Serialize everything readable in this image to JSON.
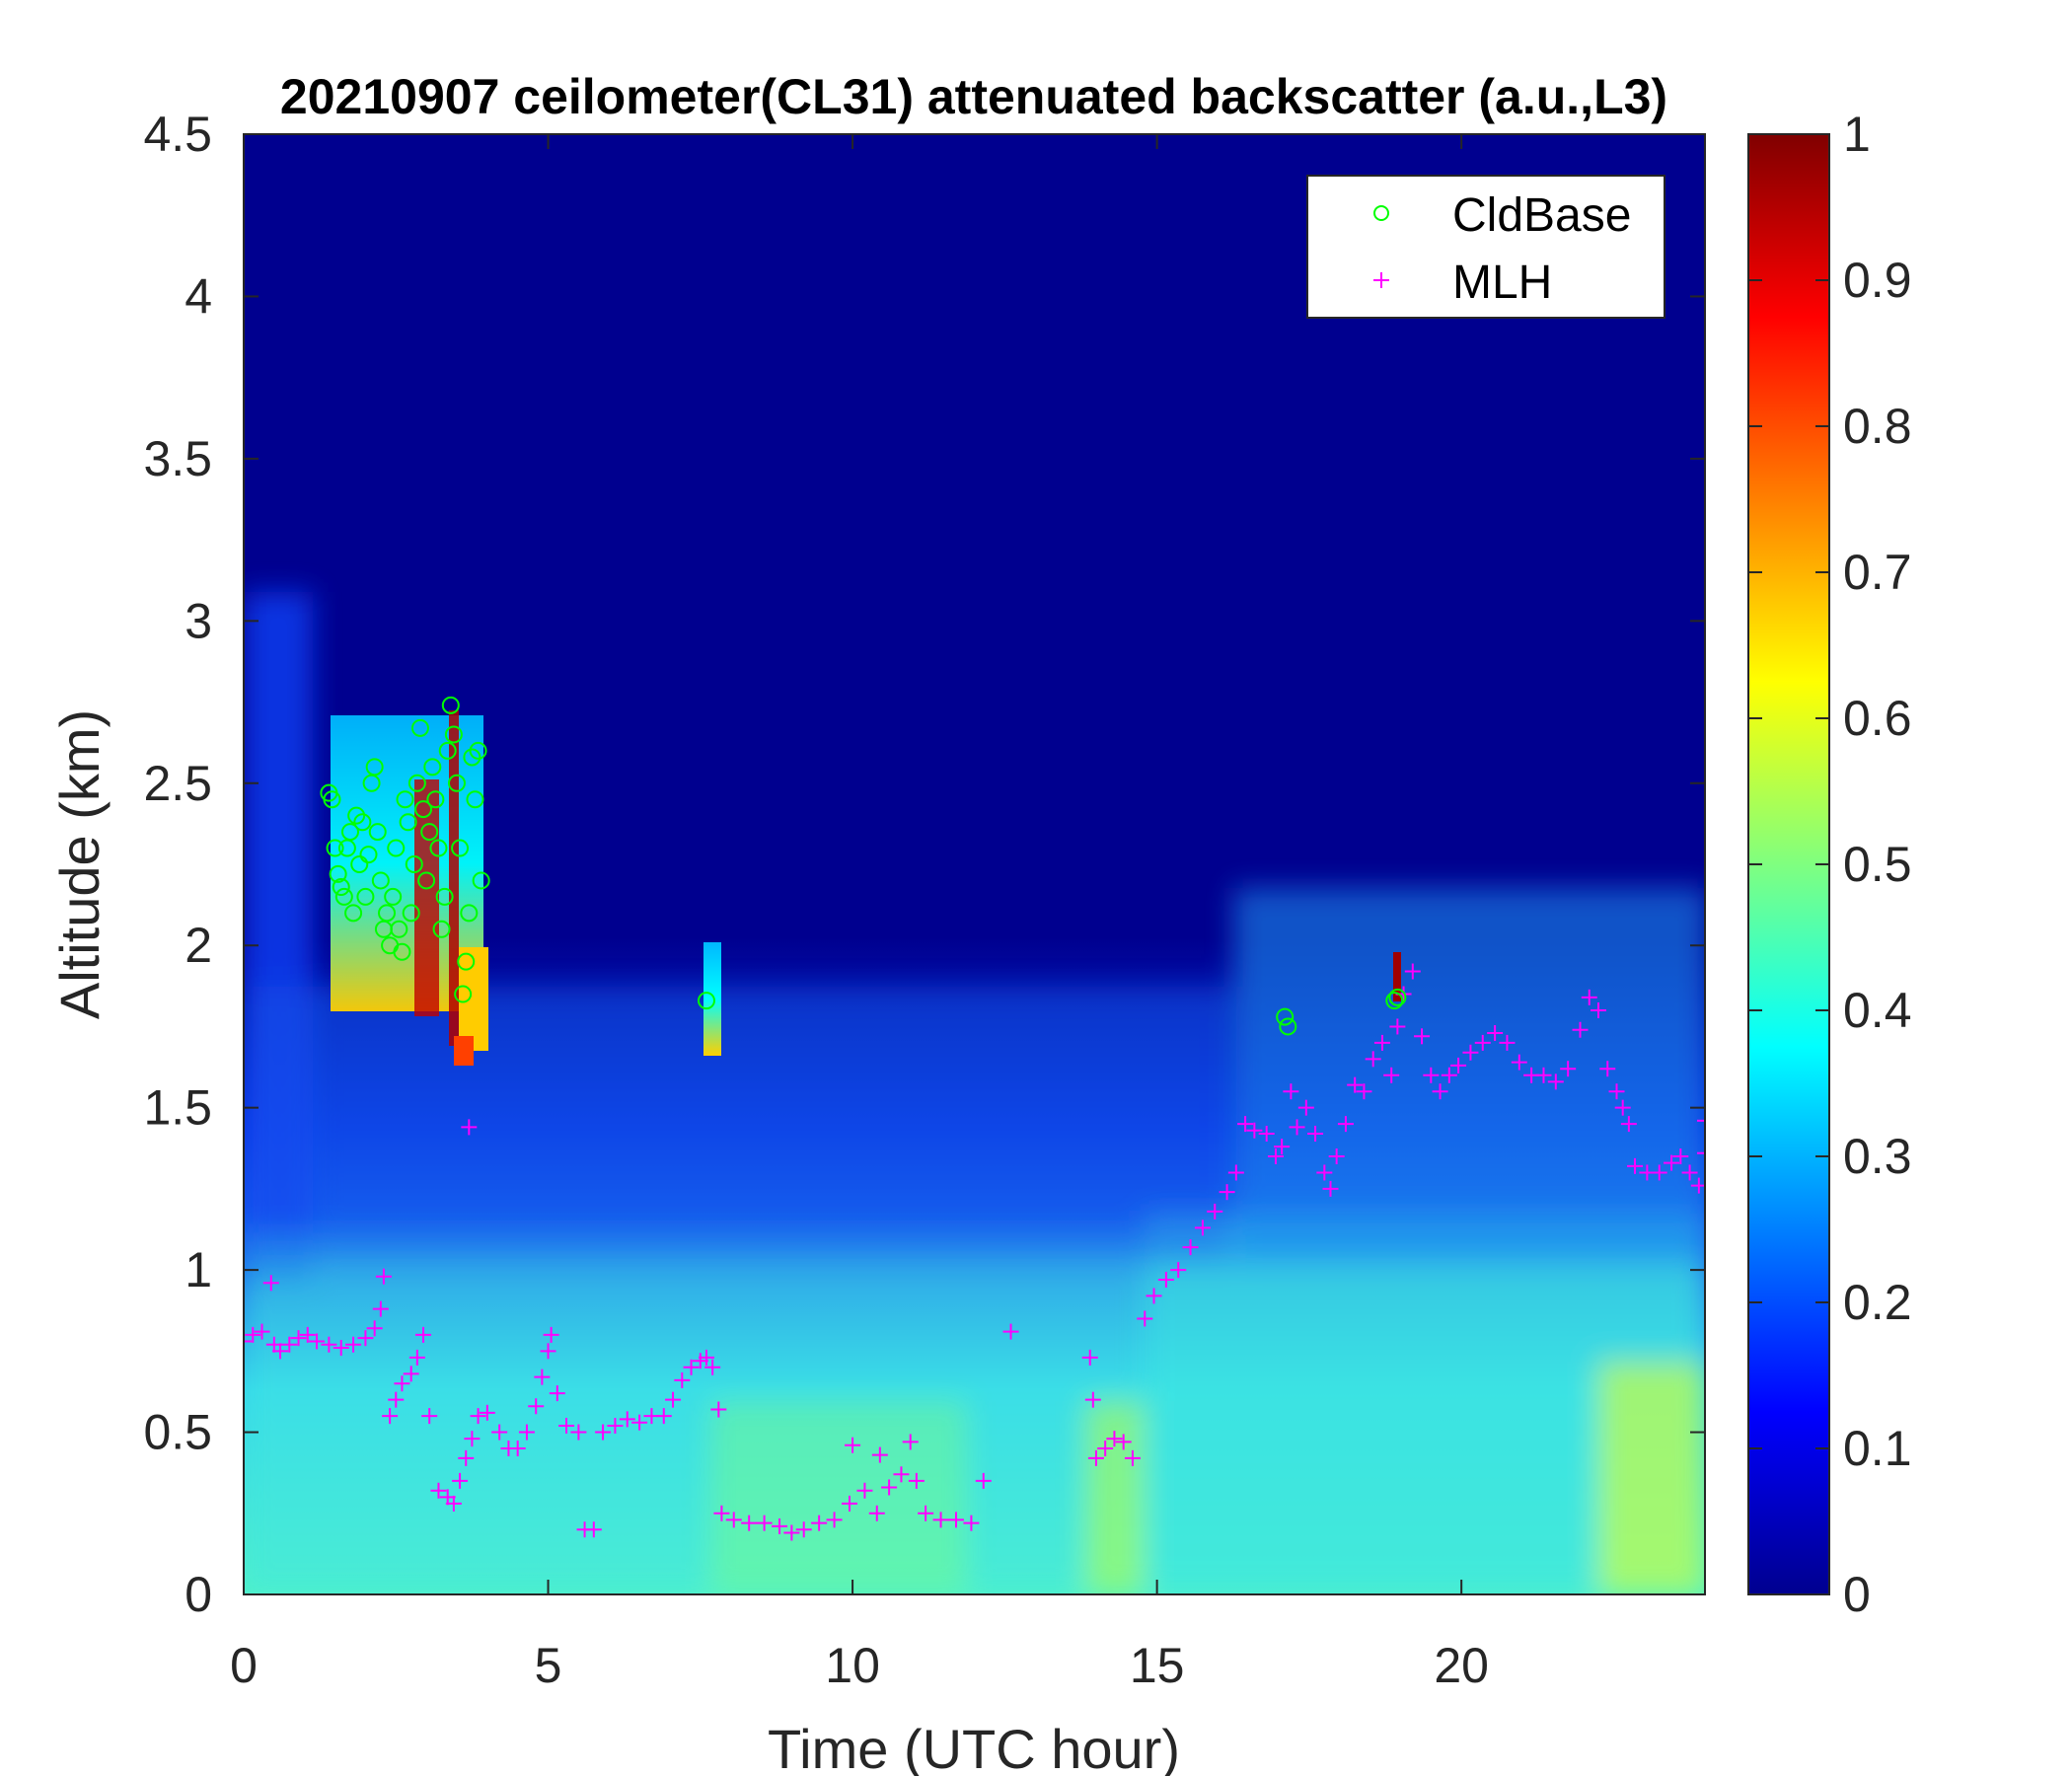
{
  "chart_data": {
    "type": "heatmap",
    "title": "20210907 ceilometer(CL31) attenuated backscatter (a.u.,L3)",
    "xlabel": "Time (UTC hour)",
    "ylabel": "Altitude (km)",
    "xlim": [
      0,
      24
    ],
    "ylim": [
      0,
      4.5
    ],
    "xticks": [
      0,
      5,
      10,
      15,
      20
    ],
    "xtick_labels": [
      "0",
      "5",
      "10",
      "15",
      "20"
    ],
    "yticks": [
      0,
      0.5,
      1,
      1.5,
      2,
      2.5,
      3,
      3.5,
      4,
      4.5
    ],
    "ytick_labels": [
      "0",
      "0.5",
      "1",
      "1.5",
      "2",
      "2.5",
      "3",
      "3.5",
      "4",
      "4.5"
    ],
    "colorbar": {
      "colormap": "jet",
      "range": [
        0,
        1
      ],
      "ticks": [
        0,
        0.1,
        0.2,
        0.3,
        0.4,
        0.5,
        0.6,
        0.7,
        0.8,
        0.9,
        1
      ],
      "tick_labels": [
        "0",
        "0.1",
        "0.2",
        "0.3",
        "0.4",
        "0.5",
        "0.6",
        "0.7",
        "0.8",
        "0.9",
        "1"
      ]
    },
    "legend": {
      "placement": "top-right",
      "entries": [
        {
          "label": "CldBase",
          "marker": "circle",
          "color": "#00ff00"
        },
        {
          "label": "MLH",
          "marker": "plus",
          "color": "#ff00ff"
        }
      ]
    },
    "series": [
      {
        "name": "MLH",
        "marker": "plus",
        "color": "#ff00ff",
        "points": [
          [
            0.0,
            0.78
          ],
          [
            0.15,
            0.8
          ],
          [
            0.3,
            0.81
          ],
          [
            0.45,
            0.96
          ],
          [
            0.5,
            0.77
          ],
          [
            0.6,
            0.75
          ],
          [
            0.75,
            0.77
          ],
          [
            0.9,
            0.79
          ],
          [
            1.05,
            0.8
          ],
          [
            1.2,
            0.78
          ],
          [
            1.4,
            0.77
          ],
          [
            1.6,
            0.76
          ],
          [
            1.8,
            0.77
          ],
          [
            2.0,
            0.79
          ],
          [
            2.15,
            0.82
          ],
          [
            2.25,
            0.88
          ],
          [
            2.3,
            0.98
          ],
          [
            2.4,
            0.55
          ],
          [
            2.5,
            0.6
          ],
          [
            2.6,
            0.65
          ],
          [
            2.75,
            0.68
          ],
          [
            2.85,
            0.73
          ],
          [
            2.95,
            0.8
          ],
          [
            3.05,
            0.55
          ],
          [
            3.2,
            0.32
          ],
          [
            3.35,
            0.3
          ],
          [
            3.45,
            0.28
          ],
          [
            3.55,
            0.35
          ],
          [
            3.65,
            0.42
          ],
          [
            3.7,
            1.44
          ],
          [
            3.75,
            0.48
          ],
          [
            3.85,
            0.55
          ],
          [
            4.0,
            0.56
          ],
          [
            4.2,
            0.5
          ],
          [
            4.35,
            0.45
          ],
          [
            4.5,
            0.45
          ],
          [
            4.65,
            0.5
          ],
          [
            4.8,
            0.58
          ],
          [
            4.9,
            0.67
          ],
          [
            5.0,
            0.75
          ],
          [
            5.05,
            0.8
          ],
          [
            5.15,
            0.62
          ],
          [
            5.3,
            0.52
          ],
          [
            5.5,
            0.5
          ],
          [
            5.6,
            0.2
          ],
          [
            5.75,
            0.2
          ],
          [
            5.9,
            0.5
          ],
          [
            6.1,
            0.52
          ],
          [
            6.3,
            0.54
          ],
          [
            6.5,
            0.53
          ],
          [
            6.7,
            0.55
          ],
          [
            6.9,
            0.55
          ],
          [
            7.05,
            0.6
          ],
          [
            7.2,
            0.66
          ],
          [
            7.35,
            0.7
          ],
          [
            7.5,
            0.72
          ],
          [
            7.6,
            0.73
          ],
          [
            7.7,
            0.7
          ],
          [
            7.8,
            0.57
          ],
          [
            7.85,
            0.25
          ],
          [
            8.05,
            0.23
          ],
          [
            8.3,
            0.22
          ],
          [
            8.55,
            0.22
          ],
          [
            8.8,
            0.21
          ],
          [
            9.0,
            0.19
          ],
          [
            9.2,
            0.2
          ],
          [
            9.45,
            0.22
          ],
          [
            9.7,
            0.23
          ],
          [
            9.95,
            0.28
          ],
          [
            10.0,
            0.46
          ],
          [
            10.2,
            0.32
          ],
          [
            10.4,
            0.25
          ],
          [
            10.45,
            0.43
          ],
          [
            10.6,
            0.33
          ],
          [
            10.8,
            0.37
          ],
          [
            10.95,
            0.47
          ],
          [
            11.05,
            0.35
          ],
          [
            11.2,
            0.25
          ],
          [
            11.45,
            0.23
          ],
          [
            11.7,
            0.23
          ],
          [
            11.95,
            0.22
          ],
          [
            12.15,
            0.35
          ],
          [
            12.6,
            0.81
          ],
          [
            13.9,
            0.73
          ],
          [
            13.95,
            0.6
          ],
          [
            14.0,
            0.42
          ],
          [
            14.15,
            0.45
          ],
          [
            14.3,
            0.48
          ],
          [
            14.45,
            0.47
          ],
          [
            14.6,
            0.42
          ],
          [
            14.8,
            0.85
          ],
          [
            14.95,
            0.92
          ],
          [
            15.15,
            0.97
          ],
          [
            15.35,
            1.0
          ],
          [
            15.55,
            1.07
          ],
          [
            15.75,
            1.13
          ],
          [
            15.95,
            1.18
          ],
          [
            16.15,
            1.24
          ],
          [
            16.3,
            1.3
          ],
          [
            16.45,
            1.45
          ],
          [
            16.6,
            1.43
          ],
          [
            16.8,
            1.42
          ],
          [
            16.95,
            1.35
          ],
          [
            17.05,
            1.38
          ],
          [
            17.2,
            1.55
          ],
          [
            17.3,
            1.44
          ],
          [
            17.45,
            1.5
          ],
          [
            17.6,
            1.42
          ],
          [
            17.75,
            1.3
          ],
          [
            17.85,
            1.25
          ],
          [
            17.95,
            1.35
          ],
          [
            18.1,
            1.45
          ],
          [
            18.25,
            1.57
          ],
          [
            18.4,
            1.55
          ],
          [
            18.55,
            1.65
          ],
          [
            18.7,
            1.7
          ],
          [
            18.85,
            1.6
          ],
          [
            18.95,
            1.75
          ],
          [
            19.05,
            1.85
          ],
          [
            19.2,
            1.92
          ],
          [
            19.35,
            1.72
          ],
          [
            19.5,
            1.6
          ],
          [
            19.65,
            1.55
          ],
          [
            19.8,
            1.6
          ],
          [
            19.95,
            1.63
          ],
          [
            20.15,
            1.67
          ],
          [
            20.35,
            1.7
          ],
          [
            20.55,
            1.73
          ],
          [
            20.75,
            1.7
          ],
          [
            20.95,
            1.64
          ],
          [
            21.15,
            1.6
          ],
          [
            21.35,
            1.6
          ],
          [
            21.55,
            1.58
          ],
          [
            21.75,
            1.62
          ],
          [
            21.95,
            1.74
          ],
          [
            22.1,
            1.84
          ],
          [
            22.25,
            1.8
          ],
          [
            22.4,
            1.62
          ],
          [
            22.55,
            1.55
          ],
          [
            22.65,
            1.5
          ],
          [
            22.75,
            1.45
          ],
          [
            22.85,
            1.32
          ],
          [
            23.05,
            1.3
          ],
          [
            23.25,
            1.3
          ],
          [
            23.45,
            1.33
          ],
          [
            23.6,
            1.35
          ],
          [
            23.75,
            1.3
          ],
          [
            23.9,
            1.26
          ],
          [
            24.0,
            1.36
          ],
          [
            24.0,
            1.46
          ]
        ]
      },
      {
        "name": "CldBase",
        "marker": "circle",
        "color": "#00ff00",
        "points": [
          [
            1.4,
            2.47
          ],
          [
            1.45,
            2.45
          ],
          [
            1.5,
            2.3
          ],
          [
            1.55,
            2.22
          ],
          [
            1.6,
            2.18
          ],
          [
            1.65,
            2.15
          ],
          [
            1.7,
            2.3
          ],
          [
            1.75,
            2.35
          ],
          [
            1.8,
            2.1
          ],
          [
            1.85,
            2.4
          ],
          [
            1.9,
            2.25
          ],
          [
            1.95,
            2.38
          ],
          [
            2.0,
            2.15
          ],
          [
            2.05,
            2.28
          ],
          [
            2.1,
            2.5
          ],
          [
            2.15,
            2.55
          ],
          [
            2.2,
            2.35
          ],
          [
            2.25,
            2.2
          ],
          [
            2.3,
            2.05
          ],
          [
            2.35,
            2.1
          ],
          [
            2.4,
            2.0
          ],
          [
            2.45,
            2.15
          ],
          [
            2.5,
            2.3
          ],
          [
            2.55,
            2.05
          ],
          [
            2.6,
            1.98
          ],
          [
            2.65,
            2.45
          ],
          [
            2.7,
            2.38
          ],
          [
            2.75,
            2.1
          ],
          [
            2.8,
            2.25
          ],
          [
            2.85,
            2.5
          ],
          [
            2.9,
            2.67
          ],
          [
            2.95,
            2.42
          ],
          [
            3.0,
            2.2
          ],
          [
            3.05,
            2.35
          ],
          [
            3.1,
            2.55
          ],
          [
            3.15,
            2.45
          ],
          [
            3.2,
            2.3
          ],
          [
            3.25,
            2.05
          ],
          [
            3.3,
            2.15
          ],
          [
            3.35,
            2.6
          ],
          [
            3.4,
            2.74
          ],
          [
            3.45,
            2.65
          ],
          [
            3.5,
            2.5
          ],
          [
            3.55,
            2.3
          ],
          [
            3.6,
            1.85
          ],
          [
            3.65,
            1.95
          ],
          [
            3.7,
            2.1
          ],
          [
            3.75,
            2.58
          ],
          [
            3.8,
            2.45
          ],
          [
            3.85,
            2.6
          ],
          [
            3.9,
            2.2
          ],
          [
            7.6,
            1.83
          ],
          [
            17.1,
            1.78
          ],
          [
            17.15,
            1.75
          ],
          [
            18.9,
            1.83
          ],
          [
            18.95,
            1.84
          ]
        ]
      }
    ]
  }
}
